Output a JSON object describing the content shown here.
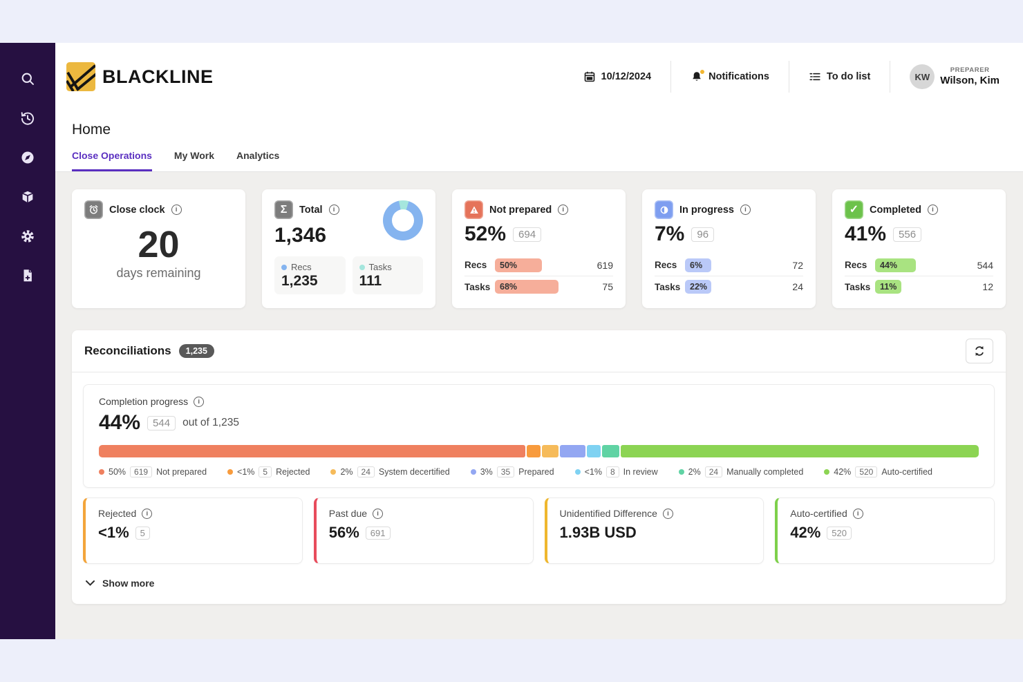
{
  "brand": {
    "name": "BLACKLINE"
  },
  "header": {
    "date": "10/12/2024",
    "notifications": "Notifications",
    "todo": "To do list",
    "user": {
      "initials": "KW",
      "role": "PREPARER",
      "name": "Wilson, Kim"
    }
  },
  "sidebar": {
    "icons": [
      "search",
      "history",
      "compass",
      "solutions-cube",
      "settings-gear",
      "document-add"
    ]
  },
  "page": {
    "title": "Home",
    "tabs": [
      {
        "label": "Close Operations"
      },
      {
        "label": "My Work"
      },
      {
        "label": "Analytics"
      }
    ]
  },
  "cards": {
    "close_clock": {
      "title": "Close clock",
      "value": "20",
      "subtitle": "days remaining"
    },
    "total": {
      "title": "Total",
      "value": "1,346",
      "recs_label": "Recs",
      "recs_value": "1,235",
      "tasks_label": "Tasks",
      "tasks_value": "111",
      "donut": {
        "tasks_pct": 8,
        "recs_color": "#85b4ef",
        "tasks_color": "#a5e6dd"
      }
    },
    "not_prepared": {
      "title": "Not prepared",
      "pct": "52%",
      "count": "694",
      "recs_label": "Recs",
      "recs_pct": "50%",
      "recs_pct_num": 50,
      "recs_count": "619",
      "tasks_label": "Tasks",
      "tasks_pct": "68%",
      "tasks_pct_num": 68,
      "tasks_count": "75",
      "pill_bg": "#f6ae9a",
      "icon_bg": "#e5735a"
    },
    "in_progress": {
      "title": "In progress",
      "pct": "7%",
      "count": "96",
      "recs_label": "Recs",
      "recs_pct": "6%",
      "recs_pct_num": 6,
      "recs_count": "72",
      "tasks_label": "Tasks",
      "tasks_pct": "22%",
      "tasks_pct_num": 22,
      "tasks_count": "24",
      "pill_bg": "#bac9f8",
      "icon_bg": "#7e9ef0"
    },
    "completed": {
      "title": "Completed",
      "pct": "41%",
      "count": "556",
      "recs_label": "Recs",
      "recs_pct": "44%",
      "recs_pct_num": 44,
      "recs_count": "544",
      "tasks_label": "Tasks",
      "tasks_pct": "11%",
      "tasks_pct_num": 11,
      "tasks_count": "12",
      "pill_bg": "#a9e381",
      "icon_bg": "#6cc24b"
    }
  },
  "reconciliations": {
    "title": "Reconciliations",
    "badge": "1,235",
    "completion_label": "Completion progress",
    "completion_pct": "44%",
    "completion_count": "544",
    "completion_suffix": "out of 1,235",
    "segments": [
      {
        "label": "Not prepared",
        "pct_label": "50%",
        "count": "619",
        "pct": 50,
        "color": "#ef805f"
      },
      {
        "label": "Rejected",
        "pct_label": "<1%",
        "count": "5",
        "pct": 0.4,
        "color": "#f89b3d"
      },
      {
        "label": "System decertified",
        "pct_label": "2%",
        "count": "24",
        "pct": 2,
        "color": "#f6bb5a"
      },
      {
        "label": "Prepared",
        "pct_label": "3%",
        "count": "35",
        "pct": 3,
        "color": "#93a7f2"
      },
      {
        "label": "In review",
        "pct_label": "<1%",
        "count": "8",
        "pct": 0.6,
        "color": "#7fd2f2"
      },
      {
        "label": "Manually completed",
        "pct_label": "2%",
        "count": "24",
        "pct": 2,
        "color": "#60d3a4"
      },
      {
        "label": "Auto-certified",
        "pct_label": "42%",
        "count": "520",
        "pct": 42,
        "color": "#8cd453"
      }
    ],
    "metric_cards": [
      {
        "title": "Rejected",
        "value": "<1%",
        "badge": "5",
        "accent": "#f3a53b"
      },
      {
        "title": "Past due",
        "value": "56%",
        "badge": "691",
        "accent": "#e84c5c"
      },
      {
        "title": "Unidentified Difference",
        "value": "1.93B USD",
        "badge": "",
        "accent": "#efb72e"
      },
      {
        "title": "Auto-certified",
        "value": "42%",
        "badge": "520",
        "accent": "#7ed04b"
      }
    ],
    "show_more": "Show more"
  },
  "chart_data": [
    {
      "type": "pie",
      "title": "Total close items by type",
      "categories": [
        "Recs",
        "Tasks"
      ],
      "values": [
        1235,
        111
      ],
      "colors": [
        "#85b4ef",
        "#a5e6dd"
      ],
      "total": 1346
    },
    {
      "type": "bar",
      "title": "Reconciliations completion progress (stacked, of 1,235)",
      "categories": [
        "Not prepared",
        "Rejected",
        "System decertified",
        "Prepared",
        "In review",
        "Manually completed",
        "Auto-certified"
      ],
      "values": [
        619,
        5,
        24,
        35,
        8,
        24,
        520
      ],
      "pct_labels": [
        "50%",
        "<1%",
        "2%",
        "3%",
        "<1%",
        "2%",
        "42%"
      ],
      "colors": [
        "#ef805f",
        "#f89b3d",
        "#f6bb5a",
        "#93a7f2",
        "#7fd2f2",
        "#60d3a4",
        "#8cd453"
      ]
    }
  ]
}
